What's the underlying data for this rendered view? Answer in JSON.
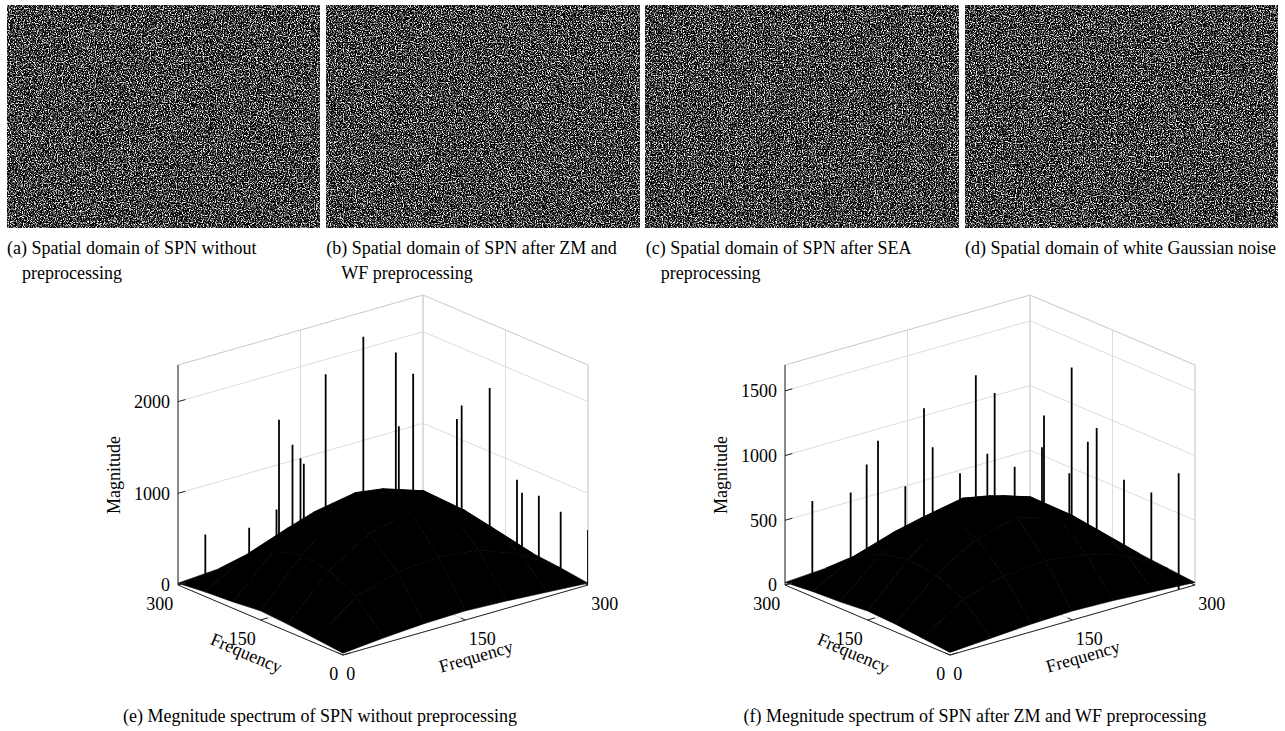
{
  "chart_data": [
    {
      "type": "image",
      "title": "(a) Spatial domain of SPN without preprocessing"
    },
    {
      "type": "image",
      "title": "(b) Spatial domain of SPN after ZM and WF preprocessing"
    },
    {
      "type": "image",
      "title": "(c) Spatial domain of SPN after SEA preprocessing"
    },
    {
      "type": "image",
      "title": "(d) Spatial domain of white Gaussian noise"
    },
    {
      "type": "stem3d",
      "title": "(e) Megnitude spectrum of SPN without preprocessing",
      "x_label": "Frequency",
      "y_label": "Frequency",
      "z_label": "Magnitude",
      "xlim": [
        0,
        300
      ],
      "xticks": [
        0,
        150,
        300
      ],
      "ylim": [
        0,
        300
      ],
      "yticks": [
        0,
        150,
        300
      ],
      "zlim": [
        0,
        2400
      ],
      "zticks": [
        0,
        1000,
        2000
      ],
      "grid": true,
      "color": "#000000",
      "surface": {
        "u": [
          0,
          50,
          100,
          150,
          200,
          250,
          300
        ],
        "v": [
          0,
          50,
          100,
          150,
          200,
          250,
          300
        ],
        "values": [
          [
            20,
            60,
            90,
            100,
            80,
            50,
            20
          ],
          [
            50,
            380,
            520,
            560,
            510,
            340,
            60
          ],
          [
            80,
            540,
            820,
            930,
            790,
            500,
            90
          ],
          [
            100,
            580,
            940,
            1050,
            900,
            560,
            80
          ],
          [
            70,
            500,
            800,
            880,
            780,
            480,
            70
          ],
          [
            50,
            330,
            490,
            540,
            470,
            320,
            50
          ],
          [
            20,
            50,
            80,
            90,
            70,
            50,
            20
          ]
        ]
      },
      "spikes": {
        "u": [
          280,
          230,
          210,
          190,
          180,
          150,
          130,
          110,
          100,
          75,
          60,
          260,
          240,
          40,
          30,
          20,
          0,
          270,
          250,
          290,
          300,
          200,
          120,
          140
        ],
        "v": [
          20,
          40,
          60,
          80,
          100,
          110,
          130,
          160,
          175,
          190,
          220,
          200,
          230,
          240,
          260,
          280,
          300,
          120,
          90,
          260,
          150,
          280,
          300,
          60
        ],
        "values": [
          550,
          700,
          900,
          1400,
          2350,
          950,
          1000,
          2380,
          900,
          1900,
          2200,
          2300,
          1300,
          1200,
          1000,
          800,
          600,
          1300,
          1700,
          1900,
          1000,
          1500,
          700,
          600
        ]
      }
    },
    {
      "type": "stem3d",
      "title": "(f) Megnitude spectrum of SPN after ZM and WF preprocessing",
      "x_label": "Frequency",
      "y_label": "Frequency",
      "z_label": "Magnitude",
      "xlim": [
        0,
        300
      ],
      "xticks": [
        0,
        150,
        300
      ],
      "ylim": [
        0,
        300
      ],
      "yticks": [
        0,
        150,
        300
      ],
      "zlim": [
        0,
        1700
      ],
      "zticks": [
        0,
        500,
        1000,
        1500
      ],
      "grid": true,
      "color": "#000000",
      "surface": {
        "u": [
          0,
          50,
          100,
          150,
          200,
          250,
          300
        ],
        "v": [
          0,
          50,
          100,
          150,
          200,
          250,
          300
        ],
        "values": [
          [
            20,
            40,
            60,
            70,
            60,
            40,
            20
          ],
          [
            40,
            250,
            340,
            370,
            330,
            230,
            40
          ],
          [
            60,
            350,
            540,
            610,
            520,
            330,
            60
          ],
          [
            70,
            380,
            610,
            690,
            590,
            360,
            60
          ],
          [
            50,
            330,
            520,
            580,
            510,
            310,
            50
          ],
          [
            40,
            220,
            320,
            350,
            310,
            210,
            40
          ],
          [
            20,
            40,
            50,
            60,
            50,
            40,
            20
          ]
        ]
      },
      "spikes": {
        "u": [
          280,
          240,
          220,
          200,
          180,
          160,
          140,
          120,
          100,
          80,
          60,
          40,
          20,
          0,
          270,
          250,
          290,
          230,
          300,
          150,
          180
        ],
        "v": [
          20,
          40,
          60,
          80,
          100,
          120,
          140,
          160,
          180,
          200,
          220,
          240,
          260,
          280,
          150,
          200,
          250,
          270,
          100,
          250,
          290
        ],
        "values": [
          650,
          750,
          1150,
          800,
          1100,
          900,
          1050,
          950,
          1100,
          900,
          1250,
          850,
          750,
          900,
          1150,
          1350,
          1050,
          950,
          750,
          1500,
          800
        ]
      }
    }
  ]
}
